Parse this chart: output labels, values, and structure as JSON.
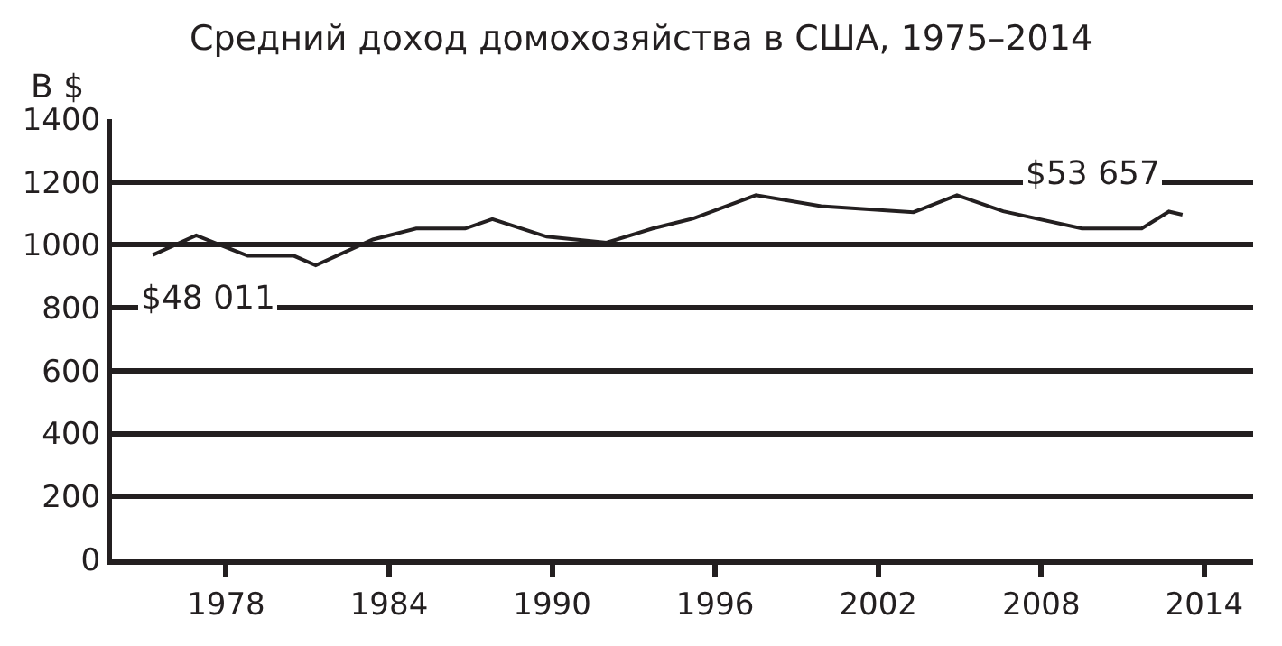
{
  "chart_data": {
    "type": "line",
    "title": "Средний доход домохозяйства в США, 1975–2014",
    "ylabel": "В $",
    "x": [
      1975.3,
      1976.9,
      1978.8,
      1980.5,
      1981.3,
      1983.4,
      1985.0,
      1986.8,
      1987.8,
      1989.8,
      1992.0,
      1993.7,
      1995.2,
      1997.5,
      1999.9,
      2003.3,
      2004.9,
      2006.6,
      2009.5,
      2011.7,
      2012.7,
      2013.2
    ],
    "series": [
      {
        "color": "#231f20",
        "values": [
          968,
          1030,
          965,
          965,
          935,
          1017,
          1052,
          1052,
          1082,
          1026,
          1007,
          1052,
          1084,
          1158,
          1123,
          1104,
          1158,
          1107,
          1052,
          1052,
          1106,
          1096
        ]
      }
    ],
    "xlim": [
      1973.8,
      2015.8
    ],
    "xticks": [
      1978,
      1984,
      1990,
      1996,
      2002,
      2008,
      2014
    ],
    "ylim": [
      0,
      1400
    ],
    "yticks": [
      0,
      200,
      400,
      600,
      800,
      1000,
      1200,
      1400
    ],
    "grid": "y",
    "line_style": "solid",
    "annotations": [
      {
        "text": "$48 011",
        "x": 1975.3,
        "y": 968
      },
      {
        "text": "$53 657",
        "x": 2013.2,
        "y": 1096
      }
    ]
  }
}
